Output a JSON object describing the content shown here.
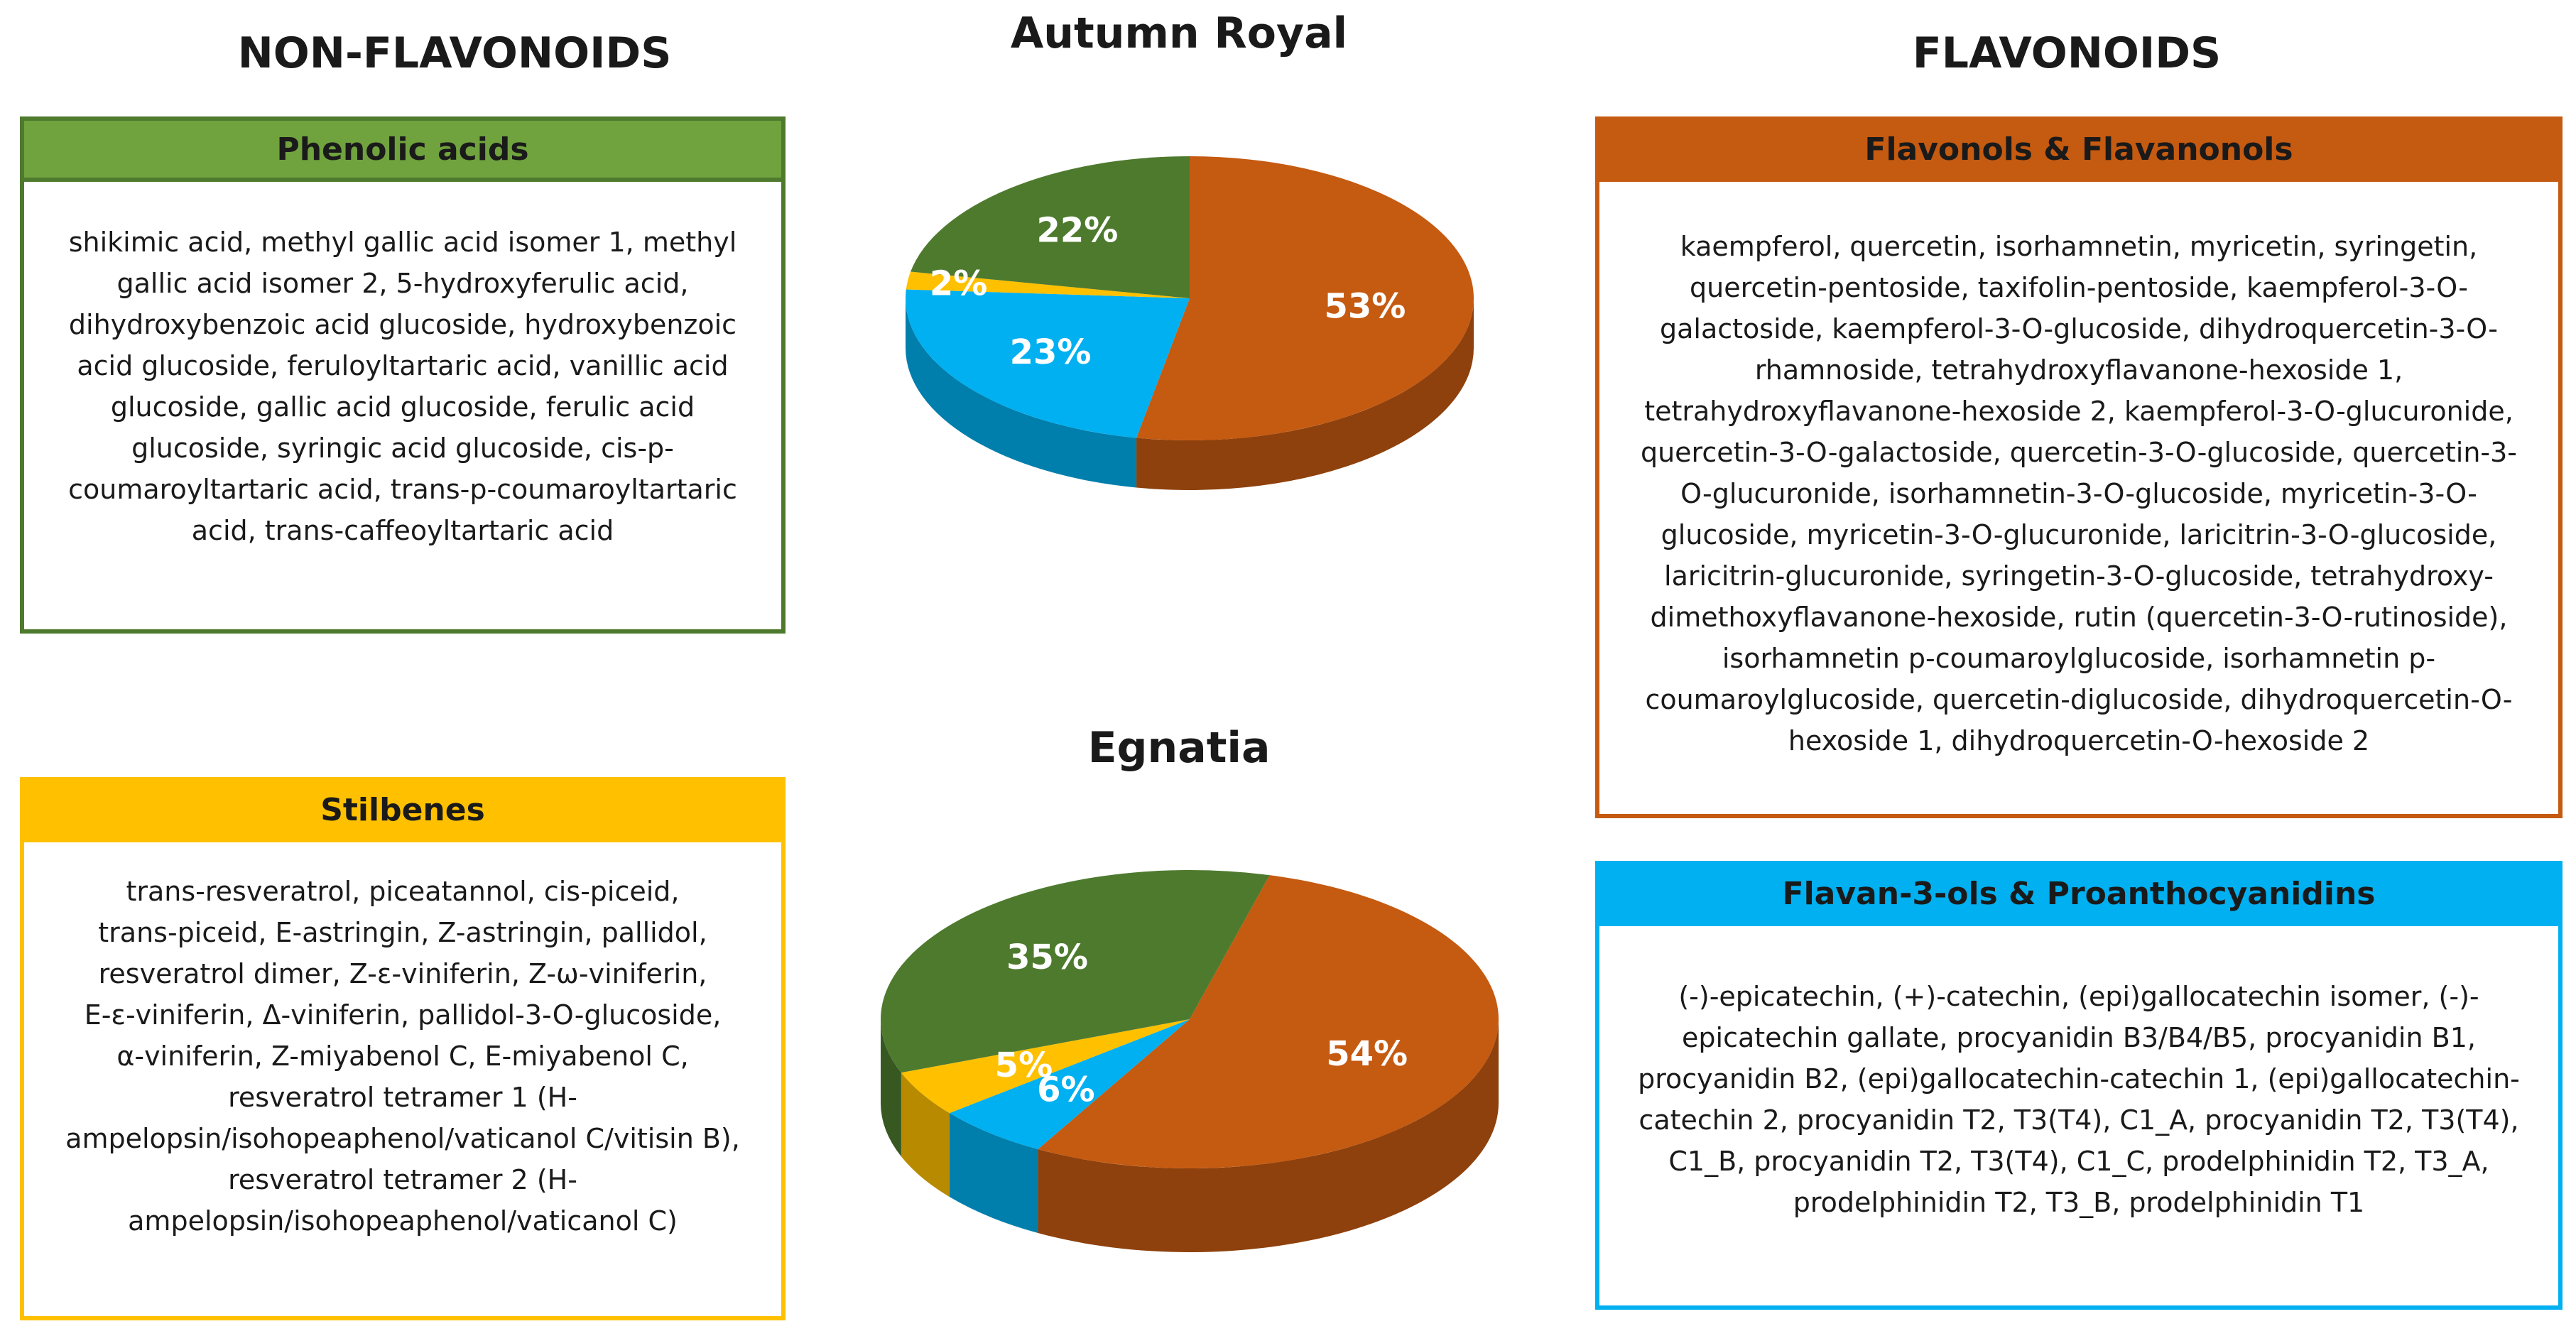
{
  "headings": {
    "left": "NON-FLAVONOIDS",
    "right": "FLAVONOIDS",
    "chart_top": "Autumn Royal",
    "chart_bottom": "Egnatia"
  },
  "colors": {
    "phenolic": "#4e7a2e",
    "stilbenes": "#ffc000",
    "flavonols": "#c55a11",
    "flavan": "#00b0f0"
  },
  "boxes": {
    "phenolic": {
      "title": "Phenolic acids",
      "lines": [
        "shikimic acid, methyl gallic acid isomer 1, methyl",
        "gallic acid isomer 2, 5-hydroxyferulic acid,",
        "dihydroxybenzoic acid glucoside, hydroxybenzoic",
        "acid glucoside, feruloyltartaric acid, vanillic acid",
        "glucoside, gallic acid glucoside, ferulic acid",
        "glucoside, syringic acid glucoside, cis-p-",
        "coumaroyltartaric acid, trans-p-coumaroyltartaric",
        "acid, trans-caffeoyltartaric acid"
      ]
    },
    "stilbenes": {
      "title": "Stilbenes",
      "lines": [
        "trans-resveratrol, piceatannol, cis-piceid,",
        "trans-piceid, E-astringin, Z-astringin, pallidol,",
        "resveratrol dimer, Z-ε-viniferin, Z-ω-viniferin,",
        "E-ε-viniferin, Δ-viniferin, pallidol-3-O-glucoside,",
        "α-viniferin, Z-miyabenol C, E-miyabenol C,",
        "resveratrol tetramer 1 (H-",
        "ampelopsin/isohopeaphenol/vaticanol C/vitisin B),",
        "resveratrol tetramer 2 (H-",
        "ampelopsin/isohopeaphenol/vaticanol C)"
      ]
    },
    "flavonols": {
      "title": "Flavonols & Flavanonols",
      "lines": [
        "kaempferol, quercetin, isorhamnetin, myricetin, syringetin,",
        "quercetin-pentoside, taxifolin-pentoside, kaempferol-3-O-",
        "galactoside, kaempferol-3-O-glucoside, dihydroquercetin-3-O-",
        "rhamnoside, tetrahydroxyflavanone-hexoside 1,",
        "tetrahydroxyflavanone-hexoside 2, kaempferol-3-O-glucuronide,",
        "quercetin-3-O-galactoside, quercetin-3-O-glucoside, quercetin-3-",
        "O-glucuronide, isorhamnetin-3-O-glucoside, myricetin-3-O-",
        "glucoside, myricetin-3-O-glucuronide, laricitrin-3-O-glucoside,",
        "laricitrin-glucuronide, syringetin-3-O-glucoside, tetrahydroxy-",
        "dimethoxyflavanone-hexoside, rutin (quercetin-3-O-rutinoside),",
        "isorhamnetin p-coumaroylglucoside, isorhamnetin p-",
        "coumaroylglucoside, quercetin-diglucoside, dihydroquercetin-O-",
        "hexoside 1, dihydroquercetin-O-hexoside 2"
      ]
    },
    "flavan": {
      "title": "Flavan-3-ols & Proanthocyanidins",
      "lines": [
        "(-)-epicatechin, (+)-catechin, (epi)gallocatechin isomer, (-)-",
        "epicatechin gallate, procyanidin B3/B4/B5, procyanidin B1,",
        "procyanidin B2, (epi)gallocatechin-catechin 1, (epi)gallocatechin-",
        "catechin 2, procyanidin T2, T3(T4), C1_A, procyanidin T2, T3(T4),",
        "C1_B, procyanidin T2, T3(T4), C1_C, prodelphinidin T2, T3_A,",
        "prodelphinidin T2, T3_B, prodelphinidin T1"
      ]
    }
  },
  "chart_data": [
    {
      "type": "pie",
      "title": "Autumn Royal",
      "categories": [
        "Flavonols & Flavanonols",
        "Flavan-3-ols & Proanthocyanidins",
        "Stilbenes",
        "Phenolic acids"
      ],
      "values": [
        53,
        23,
        2,
        22
      ],
      "labels": [
        "53%",
        "23%",
        "2%",
        "22%"
      ]
    },
    {
      "type": "pie",
      "title": "Egnatia",
      "categories": [
        "Flavonols & Flavanonols",
        "Flavan-3-ols & Proanthocyanidins",
        "Stilbenes",
        "Phenolic acids"
      ],
      "values": [
        54,
        6,
        5,
        35
      ],
      "labels": [
        "54%",
        "6%",
        "5%",
        "35%"
      ]
    }
  ]
}
